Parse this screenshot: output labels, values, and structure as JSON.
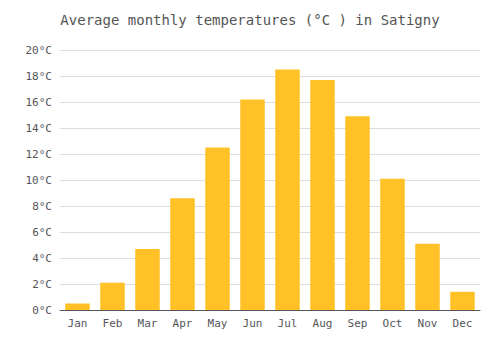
{
  "chart_data": {
    "type": "bar",
    "title": "Average monthly temperatures (°C ) in Satigny",
    "categories": [
      "Jan",
      "Feb",
      "Mar",
      "Apr",
      "May",
      "Jun",
      "Jul",
      "Aug",
      "Sep",
      "Oct",
      "Nov",
      "Dec"
    ],
    "values": [
      0.5,
      2.1,
      4.7,
      8.6,
      12.5,
      16.2,
      18.5,
      17.7,
      14.9,
      10.1,
      5.1,
      1.4
    ],
    "color": "#FFC125",
    "ylim": [
      0,
      20
    ],
    "yticks": [
      {
        "value": 0,
        "label": "0°C"
      },
      {
        "value": 2,
        "label": "2°C"
      },
      {
        "value": 4,
        "label": "4°C"
      },
      {
        "value": 6,
        "label": "6°C"
      },
      {
        "value": 8,
        "label": "8°C"
      },
      {
        "value": 10,
        "label": "10°C"
      },
      {
        "value": 12,
        "label": "12°C"
      },
      {
        "value": 14,
        "label": "14°C"
      },
      {
        "value": 16,
        "label": "16°C"
      },
      {
        "value": 18,
        "label": "18°C"
      },
      {
        "value": 20,
        "label": "20°C"
      }
    ],
    "grid": true
  }
}
